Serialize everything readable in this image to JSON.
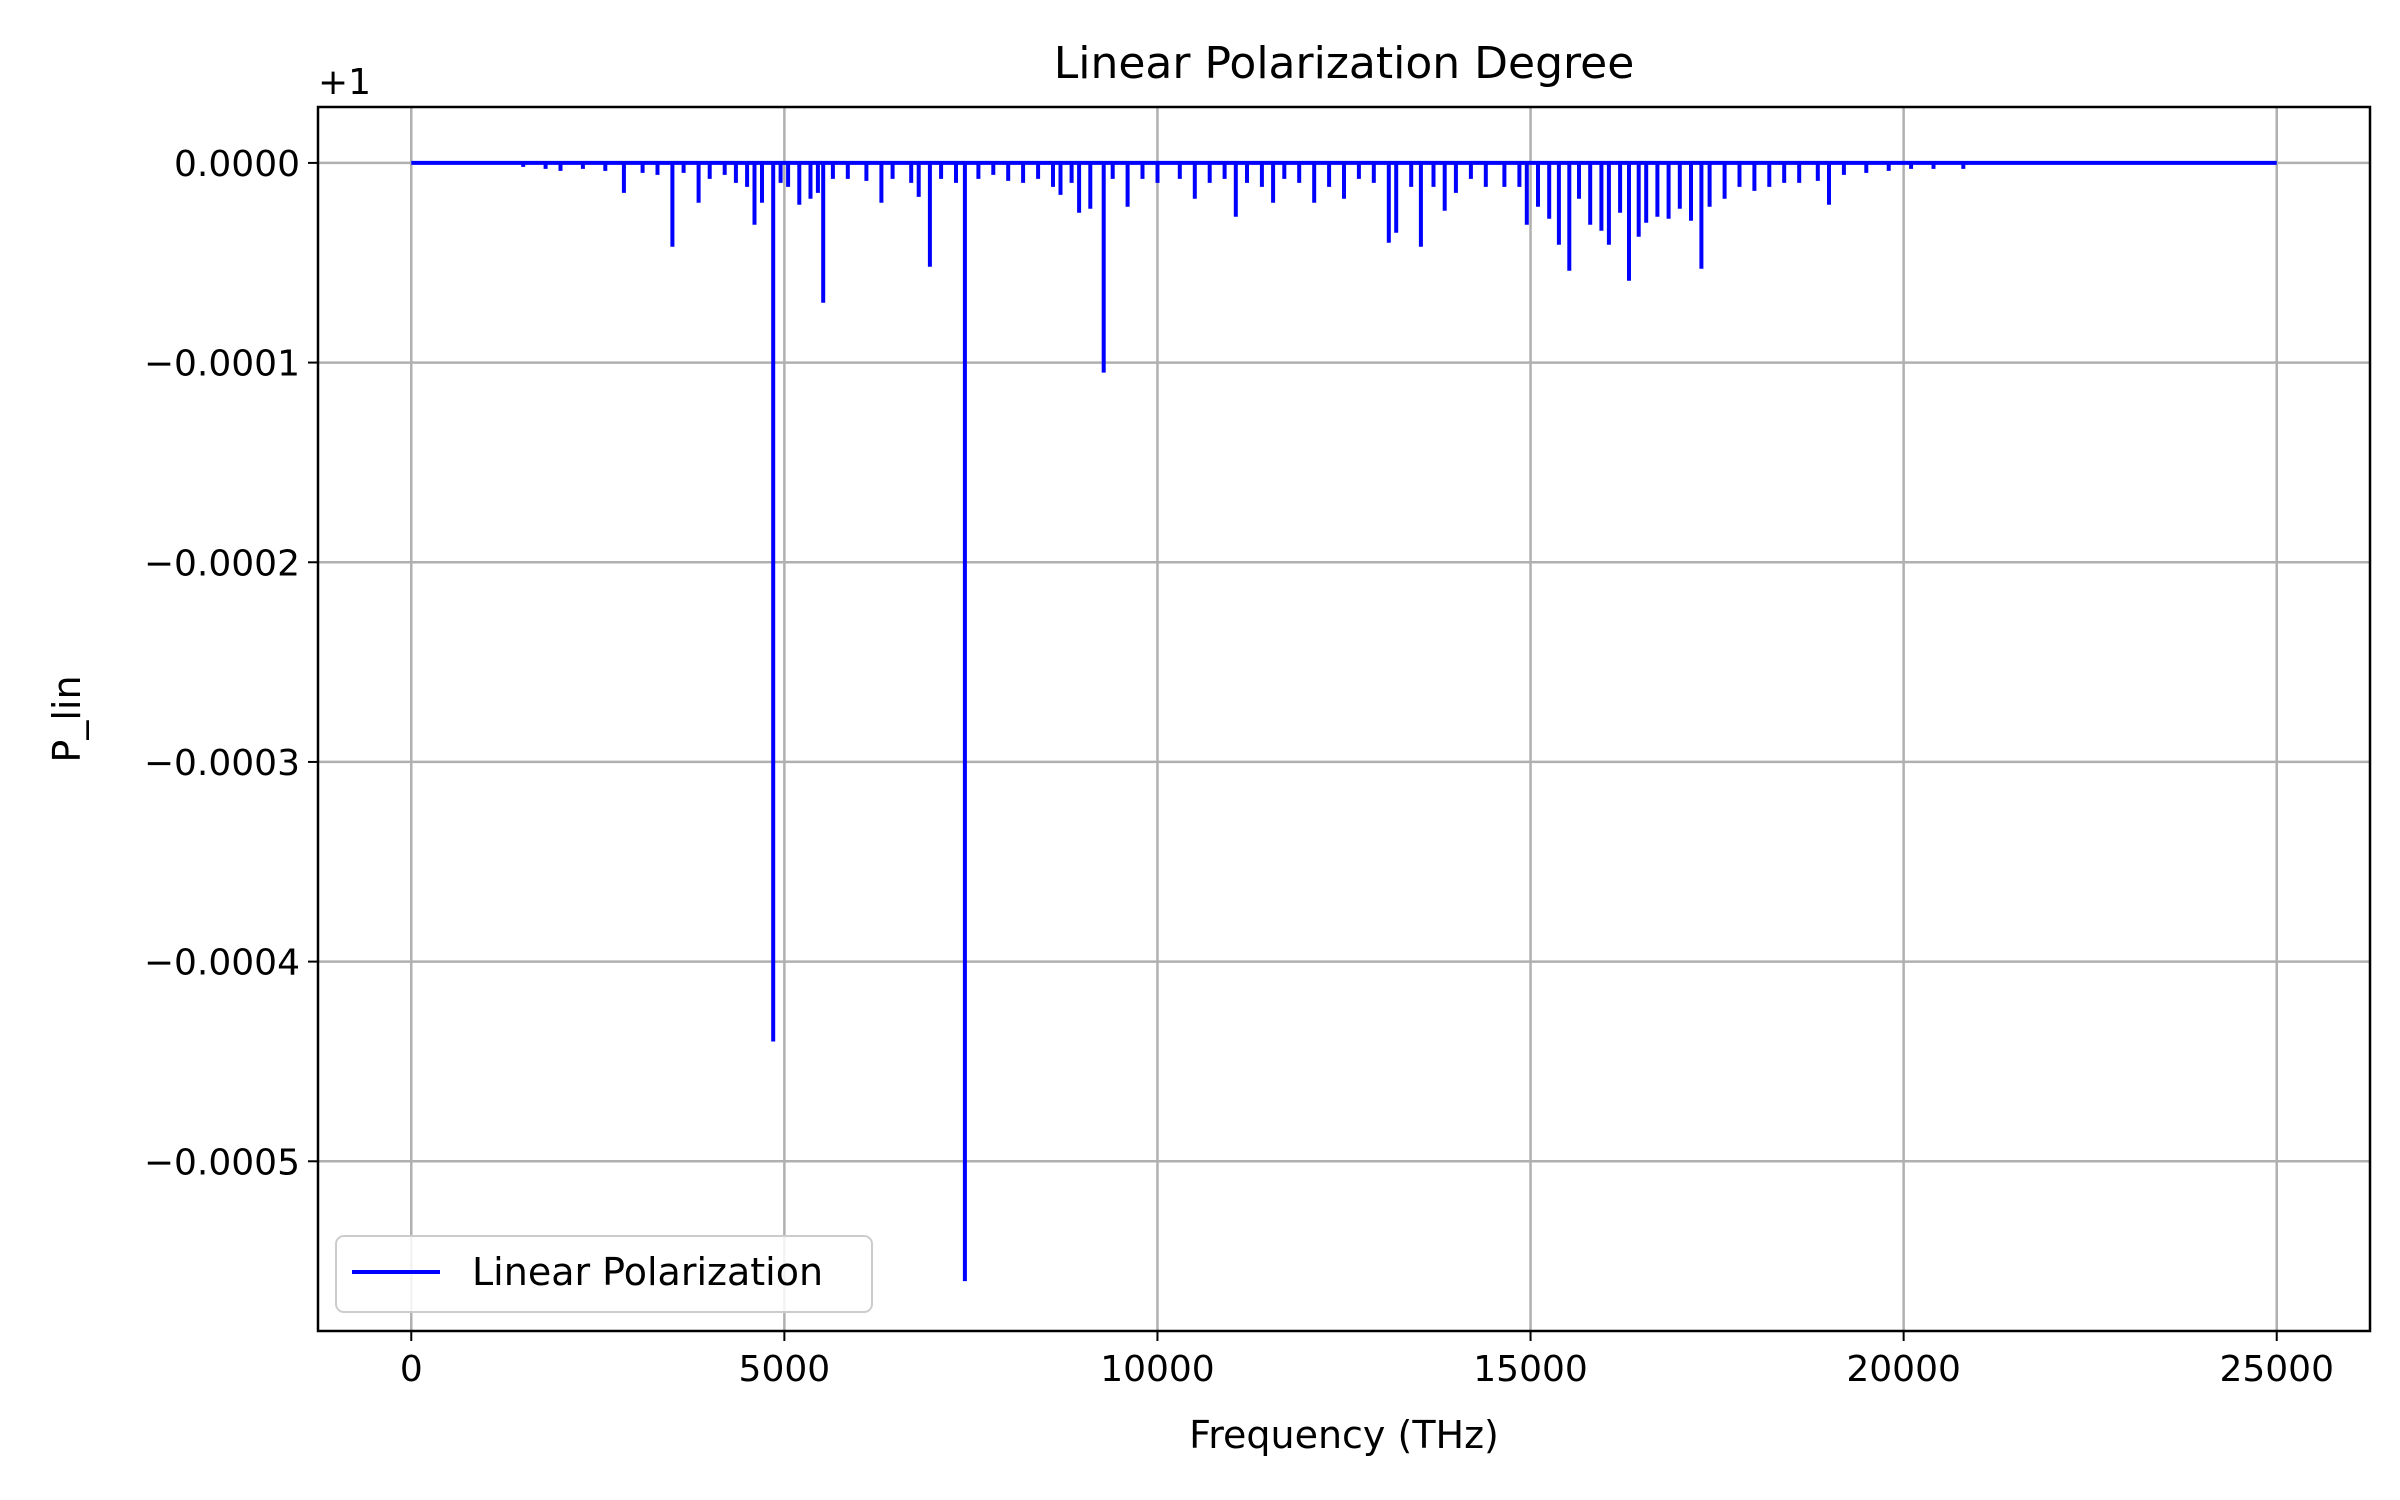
{
  "chart_data": {
    "type": "line",
    "title": "Linear Polarization Degree",
    "xlabel": "Frequency (THz)",
    "ylabel": "P_lin",
    "y_offset_label": "+1",
    "xlim": [
      -1250,
      26250
    ],
    "ylim": [
      -0.000585,
      2.8e-05
    ],
    "x_ticks": [
      0,
      5000,
      10000,
      15000,
      20000,
      25000
    ],
    "x_tick_labels": [
      "0",
      "5000",
      "10000",
      "15000",
      "20000",
      "25000"
    ],
    "y_ticks": [
      0,
      -0.0001,
      -0.0002,
      -0.0003,
      -0.0004,
      -0.0005
    ],
    "y_tick_labels": [
      "0.0000",
      "−0.0001",
      "−0.0002",
      "−0.0003",
      "−0.0004",
      "−0.0005"
    ],
    "grid": true,
    "legend_position": "lower-left",
    "series": [
      {
        "name": "Linear Polarization",
        "color": "#0000ff",
        "baseline": 0,
        "x_range": [
          0,
          25000
        ],
        "dips": [
          [
            1500,
            -2e-06
          ],
          [
            1800,
            -3e-06
          ],
          [
            2000,
            -4e-06
          ],
          [
            2300,
            -3e-06
          ],
          [
            2600,
            -4e-06
          ],
          [
            2850,
            -1.5e-05
          ],
          [
            3100,
            -5e-06
          ],
          [
            3300,
            -6e-06
          ],
          [
            3500,
            -4.2e-05
          ],
          [
            3650,
            -5e-06
          ],
          [
            3850,
            -2e-05
          ],
          [
            4000,
            -8e-06
          ],
          [
            4200,
            -6e-06
          ],
          [
            4350,
            -1e-05
          ],
          [
            4500,
            -1.2e-05
          ],
          [
            4600,
            -3.1e-05
          ],
          [
            4700,
            -2e-05
          ],
          [
            4850,
            -0.00044
          ],
          [
            4950,
            -1e-05
          ],
          [
            5050,
            -1.2e-05
          ],
          [
            5200,
            -2.1e-05
          ],
          [
            5350,
            -1.8e-05
          ],
          [
            5450,
            -1.5e-05
          ],
          [
            5520,
            -7e-05
          ],
          [
            5650,
            -8e-06
          ],
          [
            5850,
            -8e-06
          ],
          [
            6100,
            -9e-06
          ],
          [
            6300,
            -2e-05
          ],
          [
            6450,
            -8e-06
          ],
          [
            6700,
            -1e-05
          ],
          [
            6800,
            -1.7e-05
          ],
          [
            6950,
            -5.2e-05
          ],
          [
            7100,
            -8e-06
          ],
          [
            7300,
            -1e-05
          ],
          [
            7420,
            -0.00056
          ],
          [
            7600,
            -8e-06
          ],
          [
            7800,
            -6e-06
          ],
          [
            8000,
            -9e-06
          ],
          [
            8200,
            -1e-05
          ],
          [
            8400,
            -8e-06
          ],
          [
            8600,
            -1.2e-05
          ],
          [
            8700,
            -1.6e-05
          ],
          [
            8850,
            -1e-05
          ],
          [
            8950,
            -2.5e-05
          ],
          [
            9100,
            -2.3e-05
          ],
          [
            9280,
            -0.000105
          ],
          [
            9400,
            -8e-06
          ],
          [
            9600,
            -2.2e-05
          ],
          [
            9800,
            -8e-06
          ],
          [
            10000,
            -1e-05
          ],
          [
            10300,
            -8e-06
          ],
          [
            10500,
            -1.8e-05
          ],
          [
            10700,
            -1e-05
          ],
          [
            10900,
            -8e-06
          ],
          [
            11050,
            -2.7e-05
          ],
          [
            11200,
            -1e-05
          ],
          [
            11400,
            -1.2e-05
          ],
          [
            11550,
            -2e-05
          ],
          [
            11700,
            -8e-06
          ],
          [
            11900,
            -1e-05
          ],
          [
            12100,
            -2e-05
          ],
          [
            12300,
            -1.2e-05
          ],
          [
            12500,
            -1.8e-05
          ],
          [
            12700,
            -8e-06
          ],
          [
            12900,
            -1e-05
          ],
          [
            13100,
            -4e-05
          ],
          [
            13200,
            -3.5e-05
          ],
          [
            13400,
            -1.2e-05
          ],
          [
            13530,
            -4.2e-05
          ],
          [
            13700,
            -1.2e-05
          ],
          [
            13850,
            -2.4e-05
          ],
          [
            14000,
            -1.5e-05
          ],
          [
            14200,
            -8e-06
          ],
          [
            14400,
            -1.2e-05
          ],
          [
            14650,
            -1.2e-05
          ],
          [
            14850,
            -1.2e-05
          ],
          [
            14950,
            -3.1e-05
          ],
          [
            15100,
            -2.2e-05
          ],
          [
            15250,
            -2.8e-05
          ],
          [
            15380,
            -4.1e-05
          ],
          [
            15520,
            -5.4e-05
          ],
          [
            15650,
            -1.8e-05
          ],
          [
            15800,
            -3.1e-05
          ],
          [
            15950,
            -3.4e-05
          ],
          [
            16050,
            -4.1e-05
          ],
          [
            16200,
            -2.5e-05
          ],
          [
            16320,
            -5.9e-05
          ],
          [
            16450,
            -3.7e-05
          ],
          [
            16550,
            -3e-05
          ],
          [
            16700,
            -2.7e-05
          ],
          [
            16850,
            -2.8e-05
          ],
          [
            17000,
            -2.3e-05
          ],
          [
            17150,
            -2.9e-05
          ],
          [
            17290,
            -5.3e-05
          ],
          [
            17400,
            -2.2e-05
          ],
          [
            17600,
            -1.8e-05
          ],
          [
            17800,
            -1.2e-05
          ],
          [
            18000,
            -1.4e-05
          ],
          [
            18200,
            -1.2e-05
          ],
          [
            18400,
            -1e-05
          ],
          [
            18600,
            -1e-05
          ],
          [
            18850,
            -9e-06
          ],
          [
            19000,
            -2.1e-05
          ],
          [
            19200,
            -6e-06
          ],
          [
            19500,
            -5e-06
          ],
          [
            19800,
            -4e-06
          ],
          [
            20100,
            -3e-06
          ],
          [
            20400,
            -3e-06
          ],
          [
            20800,
            -3e-06
          ]
        ]
      }
    ]
  }
}
